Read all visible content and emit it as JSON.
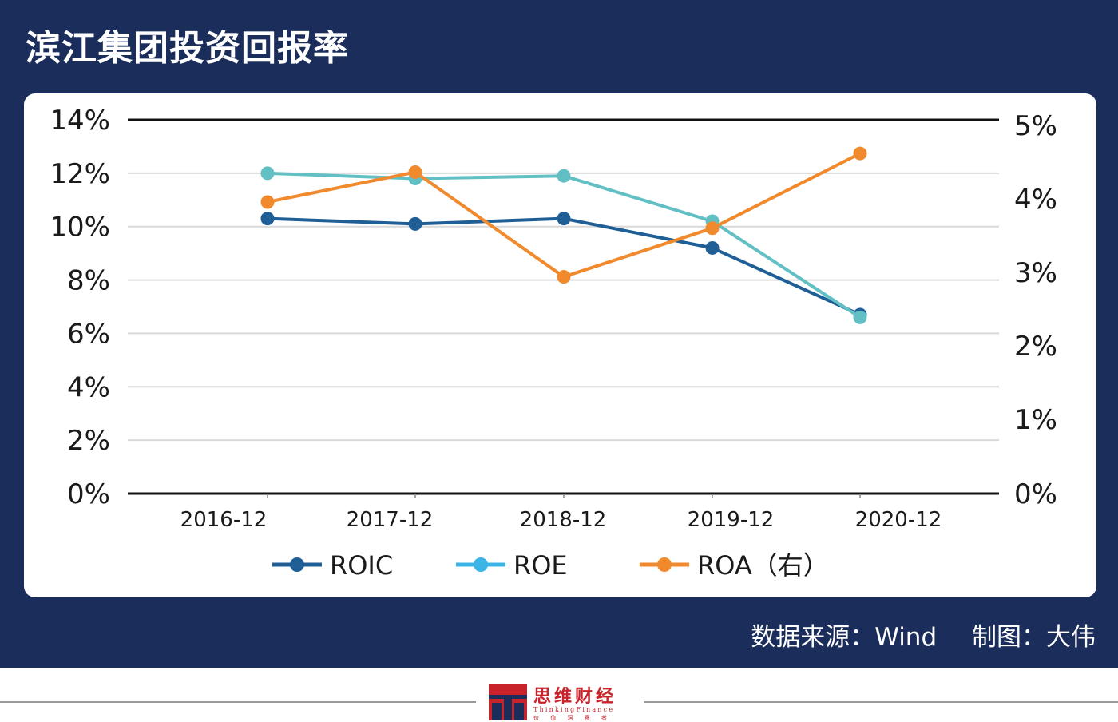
{
  "header": {
    "title": "滨江集团投资回报率"
  },
  "footer": {
    "source_label": "数据来源：Wind",
    "author_label": "制图：大伟",
    "logo_name": "思维财经",
    "logo_en": "ThinkingFinance",
    "logo_tagline": "价 值 洞 察 者"
  },
  "colors": {
    "panel": "#1b2d5a",
    "roic": "#1f5f96",
    "roe": "#62c0c4",
    "roa": "#f08a2c",
    "logo": "#c8232b"
  },
  "chart_data": {
    "type": "line",
    "categories": [
      "2016-12",
      "2017-12",
      "2018-12",
      "2019-12",
      "2020-12"
    ],
    "series": [
      {
        "name": "ROIC",
        "axis": "left",
        "values": [
          10.3,
          10.1,
          10.3,
          9.2,
          6.7
        ]
      },
      {
        "name": "ROE",
        "axis": "left",
        "values": [
          12.0,
          11.8,
          11.9,
          10.2,
          6.6
        ]
      },
      {
        "name": "ROA（右）",
        "axis": "right",
        "values": [
          3.9,
          4.3,
          2.9,
          3.55,
          4.55
        ]
      }
    ],
    "y_left": {
      "min": 0,
      "max": 14,
      "ticks": [
        "0%",
        "2%",
        "4%",
        "6%",
        "8%",
        "10%",
        "12%",
        "14%"
      ]
    },
    "y_right": {
      "min": 0,
      "max": 5,
      "ticks": [
        "0%",
        "1%",
        "2%",
        "3%",
        "4%",
        "5%"
      ]
    },
    "grid": true,
    "legend_position": "bottom"
  }
}
